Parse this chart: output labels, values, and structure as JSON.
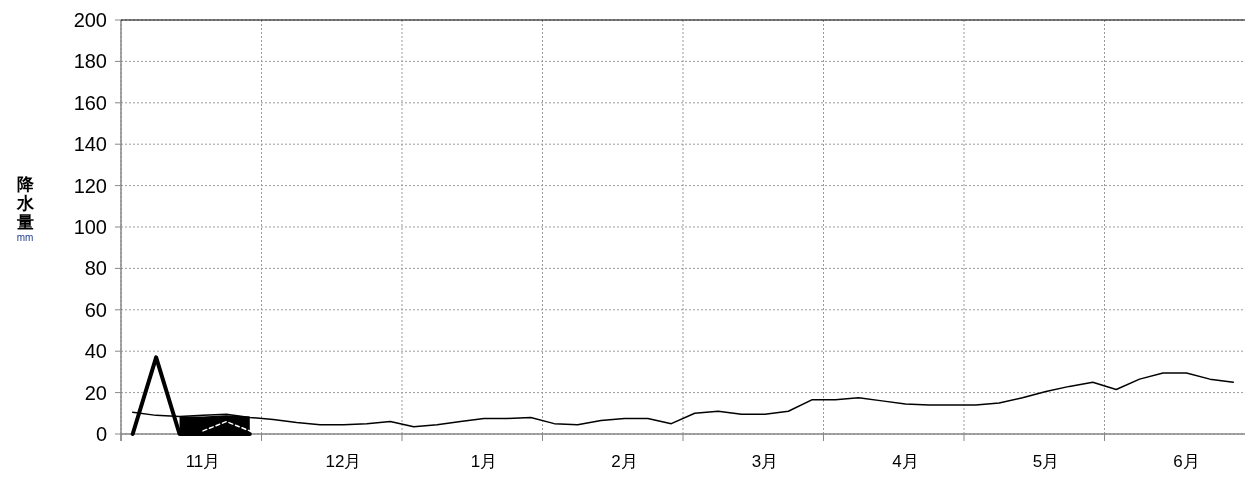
{
  "chart_data": {
    "type": "line",
    "ylabel": "降水量 mm",
    "categories": [
      null,
      null,
      null,
      "11月",
      null,
      null,
      null,
      null,
      null,
      "12月",
      null,
      null,
      null,
      null,
      null,
      "1月",
      null,
      null,
      null,
      null,
      null,
      "2月",
      null,
      null,
      null,
      null,
      null,
      "3月",
      null,
      null,
      null,
      null,
      null,
      "4月",
      null,
      null,
      null,
      null,
      null,
      "5月",
      null,
      null,
      null,
      null,
      null,
      "6月",
      null,
      null
    ],
    "ylim": [
      0,
      200
    ],
    "yticks": [
      0,
      20,
      40,
      60,
      80,
      100,
      120,
      140,
      160,
      180,
      200
    ],
    "grid": true,
    "series": [
      {
        "color": "#000000",
        "values": [
          10.5,
          9,
          8.5,
          9,
          9.5,
          8,
          7,
          5.5,
          4.5,
          4.5,
          5,
          6,
          3.5,
          4.5,
          6,
          7.5,
          7.5,
          8,
          5,
          4.5,
          6.5,
          7.5,
          7.5,
          5,
          10,
          11,
          9.5,
          9.5,
          11,
          16.5,
          16.5,
          17.5,
          16,
          14.5,
          14,
          14,
          14,
          15,
          17.5,
          20.5,
          23,
          25,
          21.5,
          26.5,
          29.5,
          29.5,
          26.5,
          25
        ]
      },
      {
        "type": "area",
        "color": "#000000",
        "values": [
          null,
          null,
          8.5,
          8.5,
          9,
          8.5,
          null,
          null,
          null,
          null,
          null,
          null,
          null,
          null,
          null,
          null,
          null,
          null,
          null,
          null,
          null,
          null,
          null,
          null,
          null,
          null,
          null,
          null,
          null,
          null,
          null,
          null,
          null,
          null,
          null,
          null,
          null,
          null,
          null,
          null,
          null,
          null,
          null,
          null,
          null,
          null,
          null,
          null
        ]
      },
      {
        "color": "#000000",
        "values": [
          0,
          37,
          0,
          0,
          0,
          0,
          null,
          null,
          null,
          null,
          null,
          null,
          null,
          null,
          null,
          null,
          null,
          null,
          null,
          null,
          null,
          null,
          null,
          null,
          null,
          null,
          null,
          null,
          null,
          null,
          null,
          null,
          null,
          null,
          null,
          null,
          null,
          null,
          null,
          null,
          null,
          null,
          null,
          null,
          null,
          null,
          null,
          null
        ]
      },
      {
        "color": "#ffffff",
        "line_style": "dashed",
        "values": [
          null,
          null,
          null,
          1.5,
          6,
          1.5,
          null,
          null,
          null,
          null,
          null,
          null,
          null,
          null,
          null,
          null,
          null,
          null,
          null,
          null,
          null,
          null,
          null,
          null,
          null,
          null,
          null,
          null,
          null,
          null,
          null,
          null,
          null,
          null,
          null,
          null,
          null,
          null,
          null,
          null,
          null,
          null,
          null,
          null,
          null,
          null,
          null,
          null
        ]
      }
    ]
  }
}
